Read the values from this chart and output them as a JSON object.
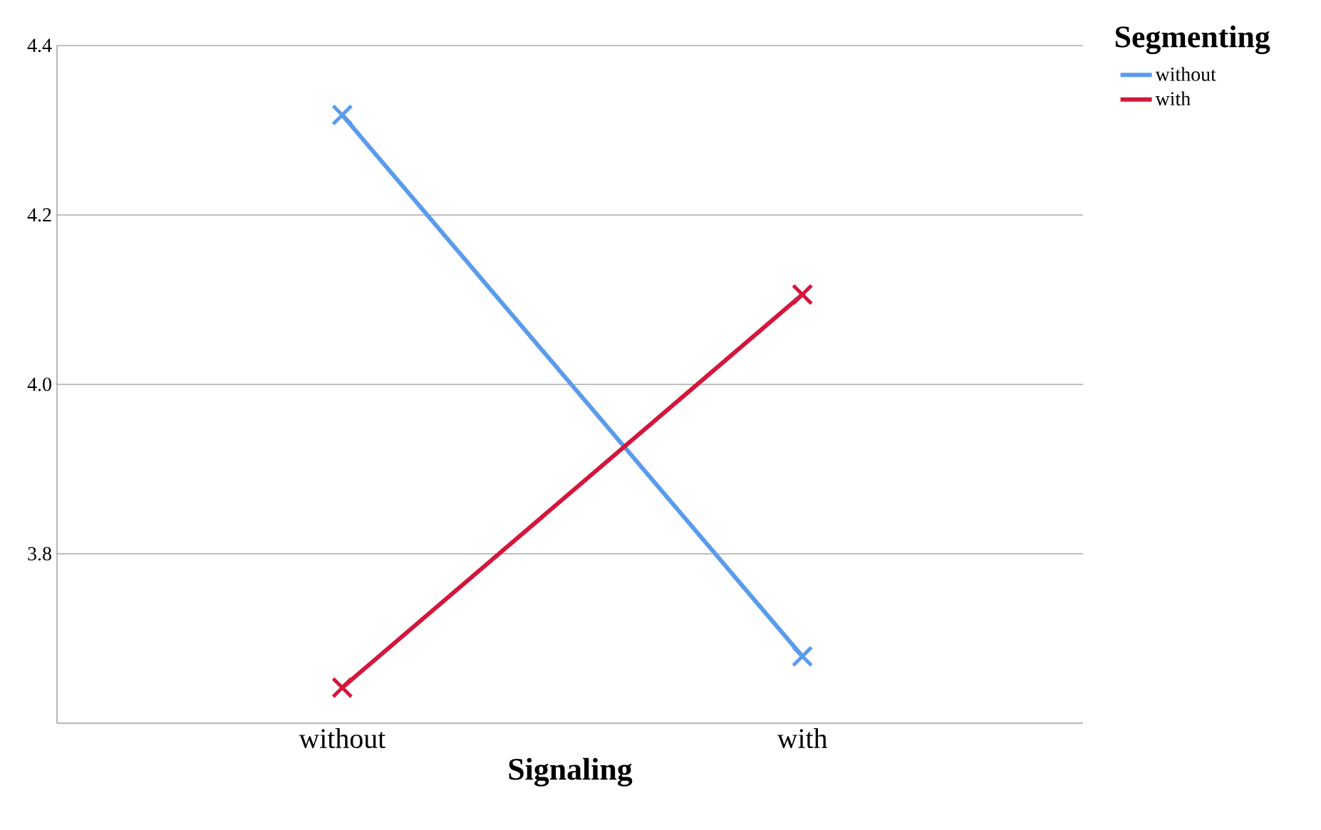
{
  "chart_data": {
    "type": "line",
    "xlabel": "Signaling",
    "legend_title": "Segmenting",
    "categories": [
      "without",
      "with"
    ],
    "series": [
      {
        "name": "without",
        "color": "#5b9bea",
        "values": [
          4.318,
          3.679
        ]
      },
      {
        "name": "with",
        "color": "#d4163c",
        "values": [
          3.642,
          4.106
        ]
      }
    ],
    "ylim": [
      3.6,
      4.4
    ],
    "yticks": [
      3.8,
      {
        "value": 4,
        "label": "4.0"
      },
      4.2,
      4.4
    ],
    "grid": "y",
    "legend": "top right",
    "marker": "cross",
    "line_style": "solid"
  }
}
